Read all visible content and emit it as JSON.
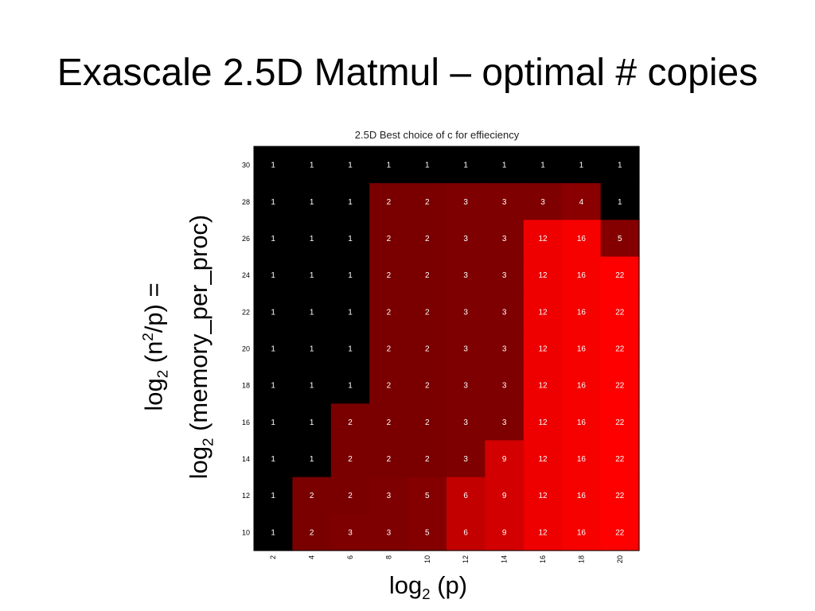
{
  "slide": {
    "title": "Exascale 2.5D Matmul – optimal # copies"
  },
  "axis_labels": {
    "y_line1_prefix": "log",
    "y_line1_sub": "2",
    "y_line1_mid": " (n",
    "y_line1_sup": "2",
    "y_line1_suffix": "/p) =",
    "y_line2_prefix": "log",
    "y_line2_sub": "2",
    "y_line2_suffix": " (memory_per_proc)",
    "x_prefix": "log",
    "x_sub": "2",
    "x_suffix": " (p)"
  },
  "chart_data": {
    "type": "heatmap",
    "title": "2.5D Best choice of c for effieciency",
    "x_ticks": [
      "2",
      "4",
      "6",
      "8",
      "10",
      "12",
      "14",
      "16",
      "18",
      "20"
    ],
    "y_ticks_top_to_bottom": [
      "30",
      "28",
      "26",
      "24",
      "22",
      "20",
      "18",
      "16",
      "14",
      "12",
      "10"
    ],
    "values_top_to_bottom": [
      [
        1,
        1,
        1,
        1,
        1,
        1,
        1,
        1,
        1,
        1
      ],
      [
        1,
        1,
        1,
        2,
        2,
        3,
        3,
        3,
        4,
        1
      ],
      [
        1,
        1,
        1,
        2,
        2,
        3,
        3,
        12,
        16,
        5
      ],
      [
        1,
        1,
        1,
        2,
        2,
        3,
        3,
        12,
        16,
        22
      ],
      [
        1,
        1,
        1,
        2,
        2,
        3,
        3,
        12,
        16,
        22
      ],
      [
        1,
        1,
        1,
        2,
        2,
        3,
        3,
        12,
        16,
        22
      ],
      [
        1,
        1,
        1,
        2,
        2,
        3,
        3,
        12,
        16,
        22
      ],
      [
        1,
        1,
        2,
        2,
        2,
        3,
        3,
        12,
        16,
        22
      ],
      [
        1,
        1,
        2,
        2,
        2,
        3,
        9,
        12,
        16,
        22
      ],
      [
        1,
        2,
        2,
        3,
        5,
        6,
        9,
        12,
        16,
        22
      ],
      [
        1,
        2,
        3,
        3,
        5,
        6,
        9,
        12,
        16,
        22
      ]
    ],
    "colormap": "black-to-red",
    "colors": {
      "1": "#000000",
      "2": "#7a0000",
      "3": "#7e0000",
      "4": "#8a0000",
      "5": "#840000",
      "6": "#c30000",
      "9": "#d20000",
      "12": "#ee0000",
      "16": "#f60000",
      "22": "#ff0000"
    },
    "cell_label_color": "#ffffff"
  }
}
